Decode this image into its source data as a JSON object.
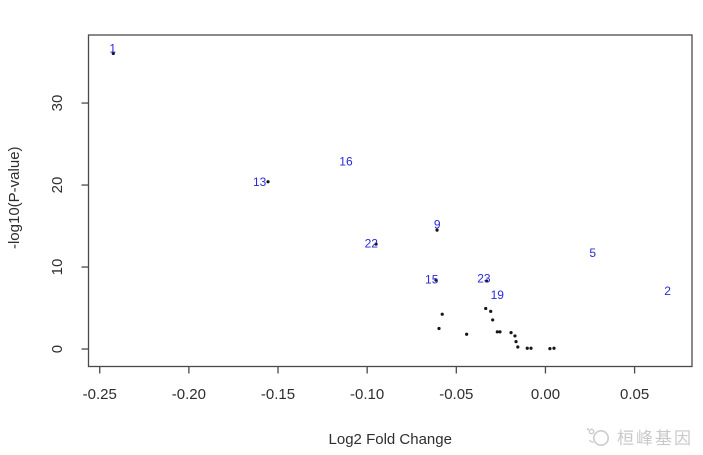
{
  "chart_data": {
    "type": "scatter",
    "title": "",
    "xlabel": "Log2 Fold Change",
    "ylabel": "-log10(P-value)",
    "xlim": [
      -0.2563,
      0.0822
    ],
    "ylim": [
      -2.13,
      38.3
    ],
    "grid": false,
    "x_ticks": [
      {
        "value": -0.25,
        "label": "-0.25"
      },
      {
        "value": -0.2,
        "label": "-0.20"
      },
      {
        "value": -0.15,
        "label": "-0.15"
      },
      {
        "value": -0.1,
        "label": "-0.10"
      },
      {
        "value": -0.05,
        "label": "-0.05"
      },
      {
        "value": 0.0,
        "label": "0.00"
      },
      {
        "value": 0.05,
        "label": "0.05"
      }
    ],
    "y_ticks": [
      {
        "value": 0,
        "label": "0"
      },
      {
        "value": 10,
        "label": "10"
      },
      {
        "value": 20,
        "label": "20"
      },
      {
        "value": 30,
        "label": "30"
      }
    ],
    "labeled_points": [
      {
        "label": "1",
        "x": -0.2427,
        "y": 36.65
      },
      {
        "label": "13",
        "x": -0.1603,
        "y": 20.4
      },
      {
        "label": "16",
        "x": -0.1119,
        "y": 22.9
      },
      {
        "label": "9",
        "x": -0.0607,
        "y": 15.2
      },
      {
        "label": "22",
        "x": -0.0977,
        "y": 12.9
      },
      {
        "label": "5",
        "x": 0.0265,
        "y": 11.7
      },
      {
        "label": "15",
        "x": -0.0638,
        "y": 8.5
      },
      {
        "label": "23",
        "x": -0.0345,
        "y": 8.6
      },
      {
        "label": "19",
        "x": -0.027,
        "y": 6.6
      },
      {
        "label": "2",
        "x": 0.0685,
        "y": 7.1
      }
    ],
    "points": [
      [
        -0.2424,
        36.05
      ],
      [
        -0.1556,
        20.4
      ],
      [
        -0.0608,
        14.5
      ],
      [
        -0.095,
        12.8
      ],
      [
        -0.0614,
        8.4
      ],
      [
        -0.033,
        8.3
      ],
      [
        -0.0579,
        4.25
      ],
      [
        -0.0597,
        2.5
      ],
      [
        -0.0442,
        1.8
      ],
      [
        -0.0335,
        4.95
      ],
      [
        -0.0307,
        4.6
      ],
      [
        -0.0296,
        3.55
      ],
      [
        -0.027,
        2.1
      ],
      [
        -0.0255,
        2.1
      ],
      [
        -0.0193,
        2.0
      ],
      [
        -0.0171,
        1.6
      ],
      [
        -0.0165,
        0.9
      ],
      [
        -0.0155,
        0.25
      ],
      [
        -0.0102,
        0.1
      ],
      [
        -0.0081,
        0.1
      ],
      [
        0.0025,
        0.05
      ],
      [
        0.0048,
        0.1
      ]
    ],
    "label_color": "#2a2ad9",
    "point_color": "#161616",
    "axis_color": "#4a4a4a",
    "tick_text_color": "#2e2e2e",
    "legend": null
  },
  "watermark": {
    "text": "桓峰基因",
    "color": "#c9c9c9",
    "logo": "molecule-logo-icon"
  }
}
